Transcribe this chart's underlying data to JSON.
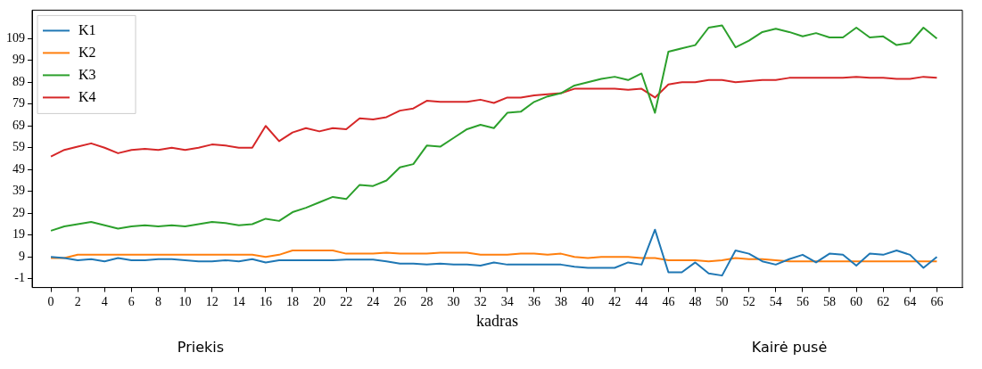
{
  "chart_data": {
    "type": "line",
    "xlabel": "kadras",
    "annotations": [
      "Priekis",
      "Kairė pusė"
    ],
    "x": [
      0,
      1,
      2,
      3,
      4,
      5,
      6,
      7,
      8,
      9,
      10,
      11,
      12,
      13,
      14,
      15,
      16,
      17,
      18,
      19,
      20,
      21,
      22,
      23,
      24,
      25,
      26,
      27,
      28,
      29,
      30,
      31,
      32,
      33,
      34,
      35,
      36,
      37,
      38,
      39,
      40,
      41,
      42,
      43,
      44,
      45,
      46,
      47,
      48,
      49,
      50,
      51,
      52,
      53,
      54,
      55,
      56,
      57,
      58,
      59,
      60,
      61,
      62,
      63,
      64,
      65,
      66
    ],
    "xlim": [
      -1.4,
      67.9
    ],
    "xticks": [
      0,
      2,
      4,
      6,
      8,
      10,
      12,
      14,
      16,
      18,
      20,
      22,
      24,
      26,
      28,
      30,
      32,
      34,
      36,
      38,
      40,
      42,
      44,
      46,
      48,
      50,
      52,
      54,
      56,
      58,
      60,
      62,
      64,
      66
    ],
    "ylim": [
      -5,
      122
    ],
    "yticks": [
      -1,
      9,
      19,
      29,
      39,
      49,
      59,
      69,
      79,
      89,
      99,
      109
    ],
    "legend": "top left",
    "grid": false,
    "marker": "none",
    "line_style": "solid",
    "series": [
      {
        "name": "K1",
        "color": "#1f77b4",
        "values": [
          9,
          8.5,
          7.5,
          8,
          7,
          8.5,
          7.5,
          7.5,
          8,
          8,
          7.5,
          7,
          7,
          7.5,
          7,
          8,
          6.5,
          7.5,
          7.5,
          7.5,
          7.5,
          7.5,
          7.8,
          7.8,
          7.8,
          7,
          6,
          6,
          5.5,
          6,
          5.5,
          5.5,
          5,
          6.5,
          5.5,
          5.5,
          5.5,
          5.5,
          5.5,
          4.5,
          4,
          4,
          4,
          6.5,
          5.5,
          21.5,
          2,
          2,
          6.5,
          1.5,
          0.5,
          12,
          10.5,
          7,
          5.5,
          8,
          10,
          6.5,
          10.5,
          10,
          5,
          10.5,
          10,
          12,
          10,
          4,
          9
        ]
      },
      {
        "name": "K2",
        "color": "#ff7f0e",
        "values": [
          8.5,
          8.5,
          10,
          10,
          10,
          10,
          10,
          10,
          10,
          10,
          10,
          10,
          10,
          10,
          10,
          10,
          9,
          10,
          12,
          12,
          12,
          12,
          10.5,
          10.5,
          10.5,
          11,
          10.5,
          10.5,
          10.5,
          11,
          11,
          11,
          10,
          10,
          10,
          10.5,
          10.5,
          10,
          10.5,
          9,
          8.5,
          9,
          9,
          9,
          8.5,
          8.5,
          7.5,
          7.5,
          7.5,
          7,
          7.5,
          8.5,
          8,
          8,
          7.5,
          7,
          7,
          7,
          7,
          7,
          7,
          7,
          7,
          7,
          7,
          7,
          7
        ]
      },
      {
        "name": "K3",
        "color": "#2ca02c",
        "values": [
          21,
          23,
          24,
          25,
          23.5,
          22,
          23,
          23.5,
          23,
          23.5,
          23,
          24,
          25,
          24.5,
          23.5,
          24,
          26.5,
          25.5,
          29.5,
          31.5,
          34,
          36.5,
          35.5,
          42,
          41.5,
          44,
          50,
          51.5,
          60,
          59.5,
          63.5,
          67.5,
          69.5,
          68,
          75,
          75.5,
          80,
          82.5,
          84,
          87.5,
          89,
          90.5,
          91.5,
          90,
          93,
          75,
          103,
          104.5,
          106,
          114,
          115,
          105,
          108,
          112,
          113.5,
          112,
          110,
          111.5,
          109.5,
          109.5,
          114,
          109.5,
          110,
          106,
          107,
          114,
          109
        ]
      },
      {
        "name": "K4",
        "color": "#d62728",
        "values": [
          55,
          58,
          59.5,
          61,
          59,
          56.5,
          58,
          58.5,
          58,
          59,
          58,
          59,
          60.5,
          60,
          59,
          59,
          69,
          62,
          66,
          68,
          66.5,
          68,
          67.5,
          72.5,
          72,
          73,
          76,
          77,
          80.5,
          80,
          80,
          80,
          81,
          79.5,
          82,
          82,
          83,
          83.5,
          84,
          86,
          86,
          86,
          86,
          85.5,
          86,
          82,
          88,
          89,
          89,
          90,
          90,
          89,
          89.5,
          90,
          90,
          91,
          91,
          91,
          91,
          91,
          91.5,
          91,
          91,
          90.5,
          90.5,
          91.5,
          91
        ]
      }
    ]
  }
}
